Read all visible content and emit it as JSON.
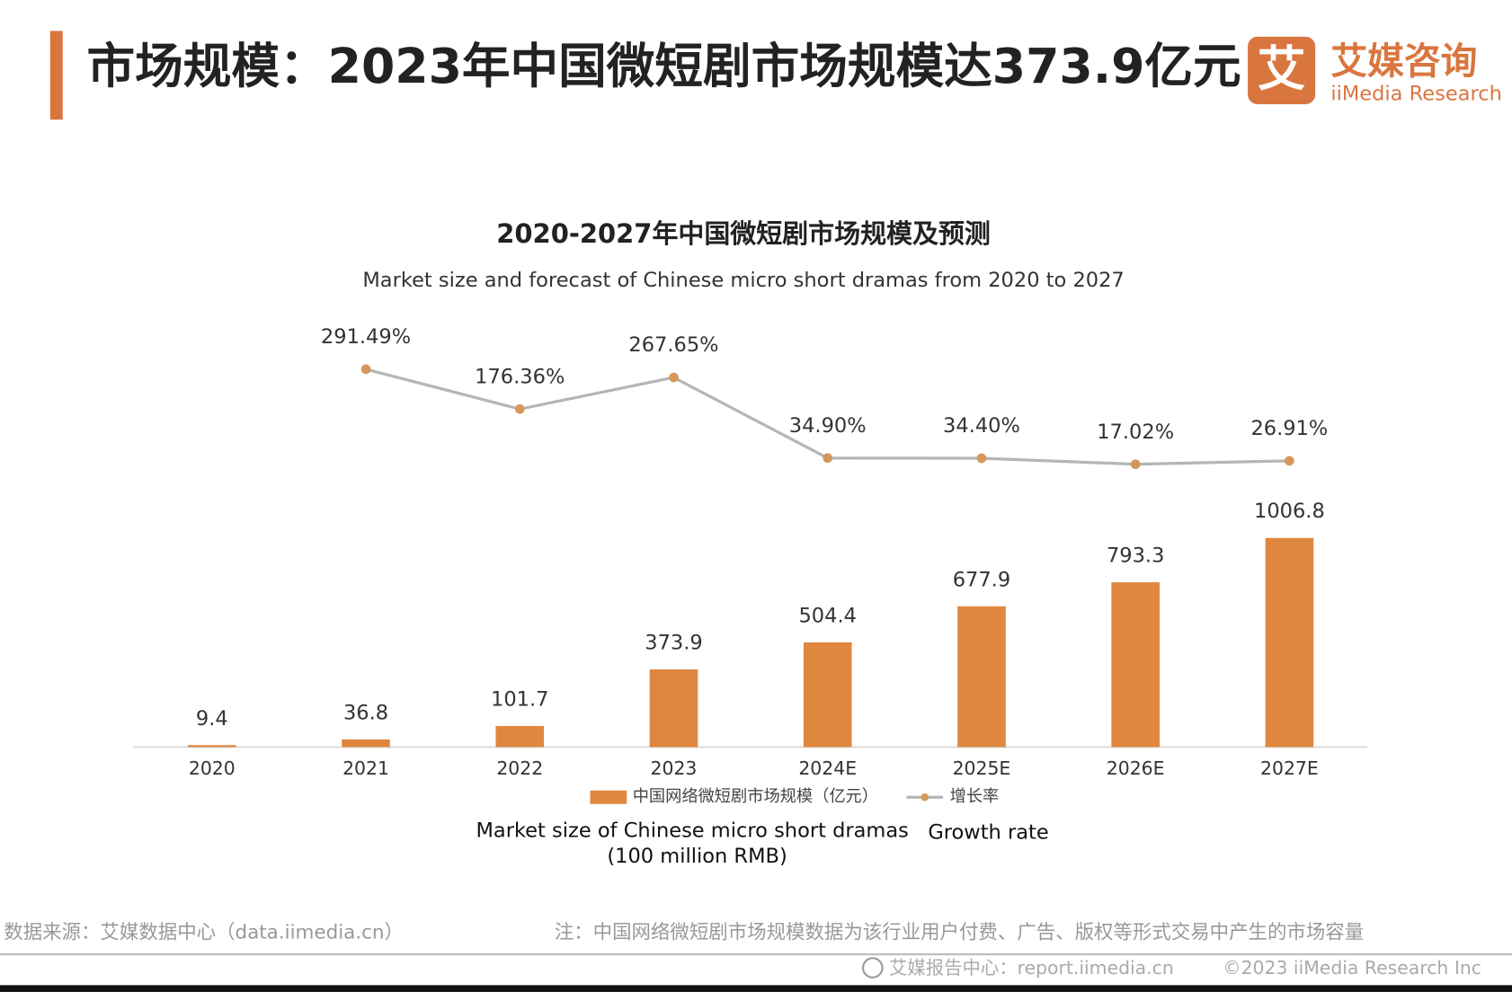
{
  "header": {
    "title": "市场规模：2023年中国微短剧市场规模达373.9亿元",
    "logo_mark": "艾",
    "logo_name": "艾媒咨询",
    "logo_en": "iiMedia Research"
  },
  "chart_data": {
    "type": "bar_line",
    "title": "2020-2027年中国微短剧市场规模及预测",
    "subtitle": "Market size and forecast of Chinese micro short dramas from 2020 to 2027",
    "categories": [
      "2020",
      "2021",
      "2022",
      "2023",
      "2024E",
      "2025E",
      "2026E",
      "2027E"
    ],
    "series": [
      {
        "name": "中国网络微短剧市场规模（亿元）",
        "color": "#e0873f",
        "values": [
          9.4,
          36.8,
          101.7,
          373.9,
          504.4,
          677.9,
          793.3,
          1006.8
        ]
      },
      {
        "name": "增长率",
        "color": "#b5b5b5",
        "marker_color": "#d4995a",
        "axis": "y2",
        "values": [
          null,
          291.49,
          176.36,
          267.65,
          34.9,
          34.4,
          17.02,
          26.91
        ],
        "value_labels": [
          null,
          "291.49%",
          "176.36%",
          "267.65%",
          "34.90%",
          "34.40%",
          "17.02%",
          "26.91%"
        ]
      }
    ],
    "ylim": [
      0,
      2000
    ],
    "y2lim": [
      -800,
      400
    ],
    "annotations": [
      "Market size of Chinese micro short dramas",
      "(100 million RMB)",
      "Growth rate"
    ]
  },
  "footer": {
    "source": "数据来源：艾媒数据中心（data.iimedia.cn）",
    "note": "注：中国网络微短剧市场规模数据为该行业用户付费、广告、版权等形式交易中产生的市场容量",
    "report": "艾媒报告中心：report.iimedia.cn",
    "copyright": "©2023  iiMedia Research Inc"
  }
}
